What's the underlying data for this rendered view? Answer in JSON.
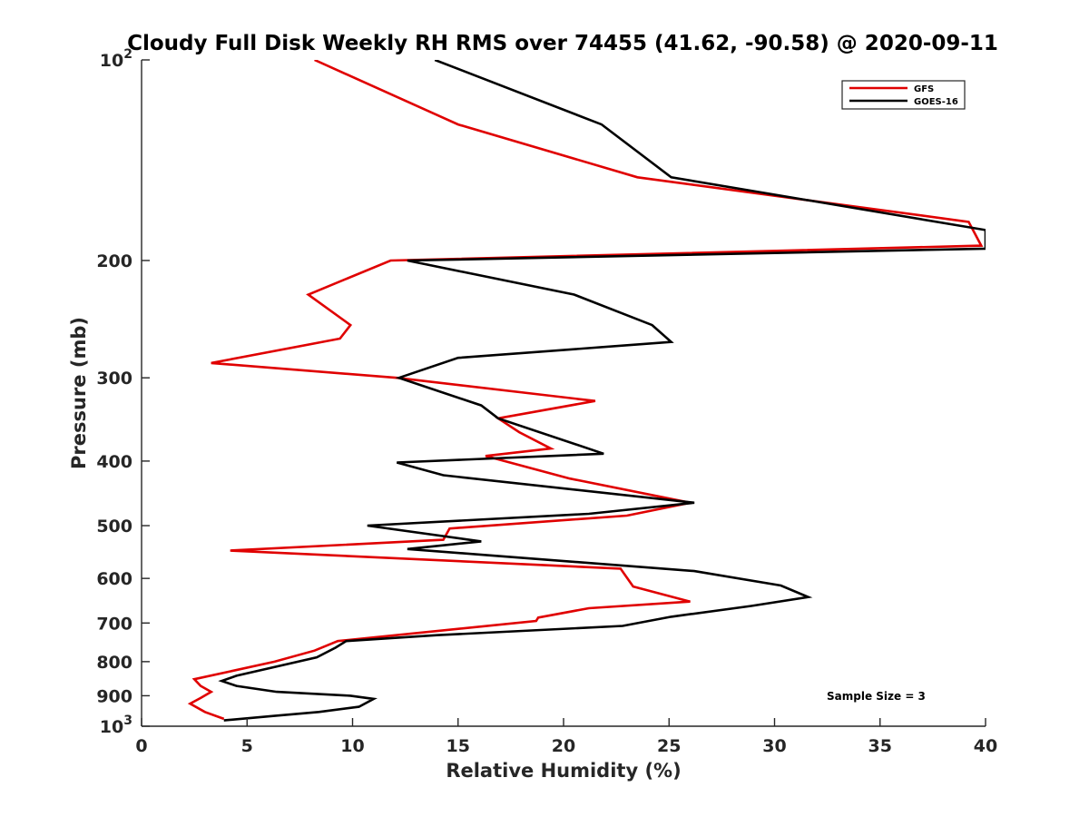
{
  "chart_data": {
    "type": "line",
    "title": "Cloudy Full Disk Weekly RH RMS over 74455 (41.62, -90.58) @ 2020-09-11",
    "xlabel": "Relative Humidity (%)",
    "ylabel": "Pressure (mb)",
    "xlim": [
      0,
      40
    ],
    "ylim": [
      100,
      1000
    ],
    "y_scale": "log",
    "y_reversed": true,
    "grid": false,
    "legend_position": "top-right",
    "x_ticks": [
      "0",
      "5",
      "10",
      "15",
      "20",
      "25",
      "30",
      "35",
      "40"
    ],
    "y_ticks": [
      {
        "value": 100,
        "base": "10",
        "exp": "2"
      },
      {
        "value": 200,
        "label": "200"
      },
      {
        "value": 300,
        "label": "300"
      },
      {
        "value": 400,
        "label": "400"
      },
      {
        "value": 500,
        "label": "500"
      },
      {
        "value": 600,
        "label": "600"
      },
      {
        "value": 700,
        "label": "700"
      },
      {
        "value": 800,
        "label": "800"
      },
      {
        "value": 900,
        "label": "900"
      },
      {
        "value": 1000,
        "base": "10",
        "exp": "3"
      }
    ],
    "series": [
      {
        "name": "GFS",
        "color": "#e00000",
        "points": [
          [
            8.2,
            100
          ],
          [
            15.0,
            125
          ],
          [
            23.5,
            150
          ],
          [
            39.2,
            175
          ],
          [
            39.8,
            190
          ],
          [
            11.8,
            200
          ],
          [
            7.9,
            225
          ],
          [
            9.9,
            250
          ],
          [
            9.4,
            262
          ],
          [
            3.3,
            285
          ],
          [
            12.1,
            300
          ],
          [
            21.5,
            325
          ],
          [
            16.9,
            345
          ],
          [
            17.9,
            362
          ],
          [
            19.4,
            383
          ],
          [
            16.3,
            393
          ],
          [
            20.3,
            425
          ],
          [
            26.0,
            462
          ],
          [
            23.0,
            483
          ],
          [
            14.6,
            505
          ],
          [
            14.3,
            525
          ],
          [
            4.2,
            545
          ],
          [
            22.7,
            580
          ],
          [
            23.3,
            617
          ],
          [
            26.0,
            650
          ],
          [
            21.2,
            665
          ],
          [
            18.8,
            687
          ],
          [
            18.7,
            695
          ],
          [
            9.3,
            745
          ],
          [
            8.2,
            770
          ],
          [
            6.3,
            800
          ],
          [
            2.5,
            850
          ],
          [
            2.8,
            870
          ],
          [
            3.3,
            888
          ],
          [
            2.8,
            907
          ],
          [
            2.3,
            925
          ],
          [
            3.0,
            952
          ],
          [
            3.9,
            975
          ]
        ]
      },
      {
        "name": "GOES-16",
        "color": "#000000",
        "points": [
          [
            13.9,
            100
          ],
          [
            21.8,
            125
          ],
          [
            25.1,
            150
          ],
          [
            40.0,
            180
          ],
          [
            40.0,
            192
          ],
          [
            12.6,
            200
          ],
          [
            20.5,
            225
          ],
          [
            24.2,
            250
          ],
          [
            25.1,
            265
          ],
          [
            15.0,
            280
          ],
          [
            12.2,
            300
          ],
          [
            16.1,
            330
          ],
          [
            16.9,
            345
          ],
          [
            21.9,
            390
          ],
          [
            12.1,
            402
          ],
          [
            14.3,
            420
          ],
          [
            26.2,
            462
          ],
          [
            21.2,
            480
          ],
          [
            10.7,
            500
          ],
          [
            16.1,
            528
          ],
          [
            12.6,
            542
          ],
          [
            16.8,
            555
          ],
          [
            26.2,
            585
          ],
          [
            30.3,
            615
          ],
          [
            31.6,
            640
          ],
          [
            28.9,
            660
          ],
          [
            25.1,
            685
          ],
          [
            22.8,
            707
          ],
          [
            14.0,
            730
          ],
          [
            9.7,
            745
          ],
          [
            9.2,
            762
          ],
          [
            8.3,
            788
          ],
          [
            4.5,
            840
          ],
          [
            3.8,
            855
          ],
          [
            4.5,
            870
          ],
          [
            6.4,
            888
          ],
          [
            9.9,
            900
          ],
          [
            11.0,
            910
          ],
          [
            10.3,
            935
          ],
          [
            8.4,
            952
          ],
          [
            6.3,
            965
          ],
          [
            3.9,
            980
          ]
        ]
      }
    ],
    "annotations": [
      {
        "text": "Sample Size = 3"
      }
    ]
  }
}
